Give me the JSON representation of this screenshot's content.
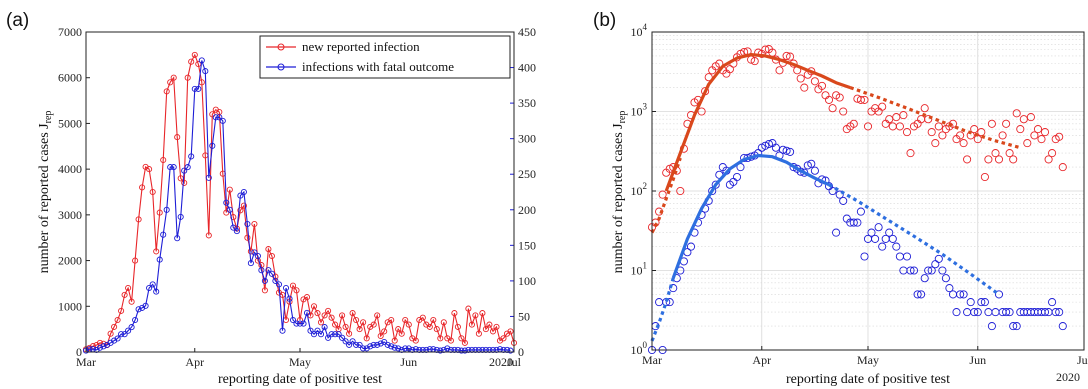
{
  "colors": {
    "red": "#e8262a",
    "blue": "#1d1dd6",
    "fit_red": "#d9481c",
    "fit_blue": "#2e6fe0",
    "marker_blue": "#1a1ad9",
    "grid": "#d8d8d8"
  },
  "chart_data": [
    {
      "type": "line",
      "panel_label": "(a)",
      "xlabel": "reporting date of positive test",
      "ylabel_left": "number of reported cases J",
      "ylabel_sub": "rep",
      "x_tick_labels": [
        "Mar",
        "Apr",
        "May",
        "Jun",
        "Jul"
      ],
      "x_year_label": "2020",
      "xlim_days": [
        0,
        122
      ],
      "ylim_left": [
        0,
        7000
      ],
      "ylim_right": [
        0,
        450
      ],
      "y_left_ticks": [
        0,
        1000,
        2000,
        3000,
        4000,
        5000,
        6000,
        7000
      ],
      "y_right_ticks": [
        0,
        50,
        100,
        150,
        200,
        250,
        300,
        350,
        400,
        450
      ],
      "legend_position": "top-right",
      "grid": false,
      "series": [
        {
          "name": "new reported infection",
          "axis": "left",
          "start_day": 0,
          "values": [
            60,
            90,
            130,
            150,
            200,
            180,
            150,
            400,
            550,
            700,
            900,
            1250,
            1400,
            1100,
            2000,
            2900,
            3600,
            4050,
            4000,
            3500,
            2200,
            3050,
            4200,
            5700,
            5900,
            6000,
            4700,
            3800,
            3700,
            6000,
            6350,
            6500,
            6300,
            5900,
            4300,
            2550,
            5200,
            5300,
            5250,
            3900,
            3050,
            3550,
            2950,
            2700,
            3100,
            3200,
            2500,
            2200,
            2800,
            2000,
            1900,
            1350,
            2250,
            2100,
            1650,
            1300,
            1250,
            700,
            1100,
            1450,
            1350,
            700,
            1150,
            1200,
            800,
            1000,
            850,
            650,
            800,
            900,
            750,
            600,
            500,
            800,
            550,
            400,
            850,
            700,
            500,
            650,
            300,
            550,
            600,
            800,
            350,
            450,
            650,
            700,
            250,
            500,
            400,
            700,
            600,
            300,
            250,
            700,
            750,
            600,
            550,
            700,
            500,
            300,
            650,
            300,
            250,
            850,
            550,
            300,
            200,
            950,
            600,
            800,
            400,
            850,
            500,
            600,
            450,
            550,
            250,
            300,
            400,
            450,
            200
          ]
        },
        {
          "name": "infections with fatal outcome",
          "axis": "right",
          "start_day": 0,
          "values": [
            2,
            4,
            4,
            3,
            6,
            8,
            10,
            13,
            16,
            19,
            25,
            25,
            30,
            35,
            45,
            60,
            62,
            65,
            90,
            95,
            85,
            130,
            165,
            200,
            260,
            260,
            160,
            190,
            255,
            260,
            275,
            370,
            370,
            410,
            395,
            245,
            290,
            330,
            330,
            325,
            210,
            200,
            175,
            170,
            220,
            225,
            180,
            125,
            140,
            135,
            115,
            100,
            115,
            110,
            100,
            95,
            30,
            90,
            75,
            45,
            40,
            40,
            40,
            55,
            30,
            25,
            30,
            25,
            35,
            20,
            25,
            25,
            25,
            20,
            15,
            10,
            15,
            10,
            10,
            5,
            5,
            8,
            10,
            10,
            12,
            14,
            10,
            8,
            6,
            5,
            3,
            5,
            5,
            3,
            4,
            3,
            3,
            3,
            4,
            4,
            3,
            2,
            3,
            5,
            3,
            3,
            3,
            2,
            2,
            3,
            3,
            3,
            3,
            3,
            3,
            3,
            3,
            3,
            4,
            3,
            3,
            2
          ]
        }
      ]
    },
    {
      "type": "scatter",
      "panel_label": "(b)",
      "xlabel": "reporting date of positive test",
      "ylabel": "number of reported cases J",
      "ylabel_sub": "rep",
      "x_tick_labels": [
        "Mar",
        "Apr",
        "May",
        "Jun",
        "Jul"
      ],
      "x_year_label": "2020",
      "xlim_days": [
        0,
        122
      ],
      "y_scale": "log",
      "ylim": [
        1,
        10000
      ],
      "y_tick_labels": [
        "10^0",
        "10^1",
        "10^2",
        "10^3",
        "10^4"
      ],
      "grid": true,
      "series": [
        {
          "name": "",
          "color_key": "red",
          "start_day": 0,
          "points": [
            35,
            40,
            55,
            90,
            170,
            190,
            200,
            180,
            100,
            340,
            700,
            900,
            1300,
            1400,
            1000,
            1800,
            2700,
            3300,
            3700,
            4000,
            3300,
            3000,
            3400,
            4000,
            4800,
            5300,
            5600,
            5700,
            4500,
            4300,
            5500,
            5300,
            6000,
            6100,
            5500,
            4500,
            3300,
            4100,
            5000,
            4900,
            4000,
            3300,
            2600,
            2000,
            2900,
            3200,
            2400,
            1900,
            2100,
            1600,
            1400,
            1100,
            1600,
            1500,
            1000,
            600,
            650,
            700,
            1450,
            1400,
            1400,
            650,
            1000,
            1100,
            1000,
            1150,
            700,
            800,
            650,
            850,
            650,
            900,
            550,
            300,
            650,
            700,
            800,
            1100,
            800,
            550,
            400,
            650,
            500,
            600,
            650,
            700,
            450,
            500,
            400,
            250,
            500,
            600,
            450,
            550,
            150,
            250,
            700,
            300,
            250,
            500,
            700,
            300,
            250,
            950,
            600,
            800,
            400,
            850,
            500,
            600,
            450,
            550,
            250,
            300,
            450,
            480,
            200
          ]
        },
        {
          "name": "",
          "color_key": "blue",
          "start_day": 0,
          "points": [
            1,
            2,
            4,
            1,
            4,
            4,
            6,
            8,
            10,
            13,
            17,
            20,
            30,
            40,
            50,
            60,
            75,
            100,
            120,
            160,
            200,
            180,
            120,
            130,
            150,
            200,
            260,
            260,
            270,
            280,
            300,
            350,
            370,
            390,
            400,
            350,
            280,
            330,
            320,
            310,
            200,
            190,
            175,
            170,
            210,
            220,
            180,
            125,
            140,
            135,
            115,
            100,
            30,
            90,
            75,
            45,
            40,
            40,
            40,
            55,
            15,
            25,
            30,
            25,
            35,
            20,
            25,
            30,
            25,
            20,
            15,
            10,
            15,
            10,
            10,
            5,
            5,
            8,
            10,
            10,
            12,
            14,
            10,
            8,
            6,
            5,
            3,
            5,
            5,
            3,
            4,
            3,
            3,
            4,
            4,
            3,
            2,
            3,
            5,
            3,
            3,
            3,
            2,
            2,
            3,
            3,
            3,
            3,
            3,
            3,
            3,
            3,
            3,
            4,
            3,
            3,
            2
          ]
        },
        {
          "name": "",
          "fit_kind": "solid",
          "color_key": "fit_red",
          "days": [
            4,
            8,
            12,
            16,
            20,
            24,
            28,
            32,
            36,
            40,
            44,
            48,
            52,
            56
          ],
          "values": [
            100,
            300,
            900,
            2200,
            3700,
            4700,
            5200,
            5000,
            4500,
            3900,
            3300,
            2800,
            2300,
            2000
          ]
        },
        {
          "name": "",
          "fit_kind": "dotted",
          "color_key": "fit_red",
          "days": [
            0,
            2,
            4,
            6,
            8
          ],
          "values": [
            30,
            45,
            80,
            140,
            260
          ]
        },
        {
          "name": "",
          "fit_kind": "dotted",
          "color_key": "fit_red",
          "days": [
            56,
            64,
            72,
            80,
            88,
            96,
            104
          ],
          "values": [
            2000,
            1500,
            1100,
            800,
            580,
            440,
            350
          ]
        },
        {
          "name": "",
          "fit_kind": "solid",
          "color_key": "fit_blue",
          "days": [
            6,
            10,
            14,
            18,
            22,
            26,
            30,
            34,
            38,
            42,
            46,
            50
          ],
          "values": [
            8,
            25,
            60,
            120,
            190,
            250,
            280,
            270,
            230,
            180,
            145,
            120
          ]
        },
        {
          "name": "",
          "fit_kind": "dotted",
          "color_key": "fit_blue",
          "days": [
            0,
            2,
            4,
            6
          ],
          "values": [
            1.3,
            2.2,
            4,
            8
          ]
        },
        {
          "name": "",
          "fit_kind": "dotted",
          "color_key": "fit_blue",
          "days": [
            50,
            58,
            66,
            74,
            82,
            90,
            98
          ],
          "values": [
            120,
            75,
            45,
            27,
            16,
            9,
            5
          ]
        }
      ]
    }
  ]
}
